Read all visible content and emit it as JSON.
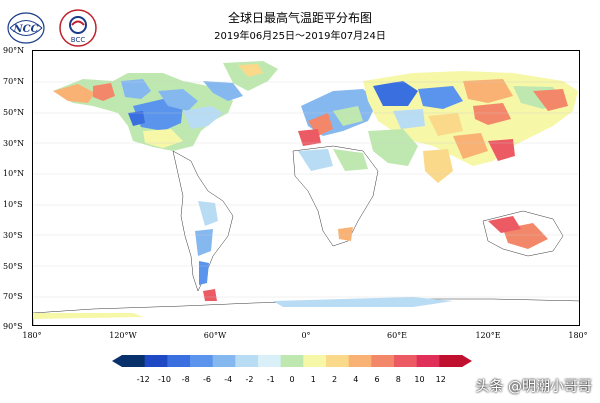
{
  "header": {
    "title": "全球日最高气温距平分布图",
    "subtitle": "2019年06月25日～2019年07月24日",
    "logo_left": "NCC",
    "logo_right": "BCC"
  },
  "map": {
    "lat_labels": [
      "90°N",
      "70°N",
      "50°N",
      "30°N",
      "10°N",
      "10°S",
      "30°S",
      "50°S",
      "70°S",
      "90°S"
    ],
    "lon_labels": [
      "180°",
      "120°W",
      "60°W",
      "0°",
      "60°E",
      "120°E",
      "180°"
    ]
  },
  "legend": {
    "labels": [
      "-12",
      "-10",
      "-8",
      "-6",
      "-4",
      "-2",
      "-1",
      "0",
      "1",
      "2",
      "4",
      "6",
      "8",
      "10",
      "12"
    ],
    "colors": [
      "#08306b",
      "#1f49c4",
      "#3a6fe0",
      "#5a94ec",
      "#86b8f0",
      "#b9dcf5",
      "#d9f0f8",
      "#bfe8b0",
      "#f7f7a8",
      "#fbd98a",
      "#f9b274",
      "#f3876a",
      "#ec5a63",
      "#e0305a",
      "#c0102f"
    ]
  },
  "watermark": "头条 @明潮小哥哥"
}
